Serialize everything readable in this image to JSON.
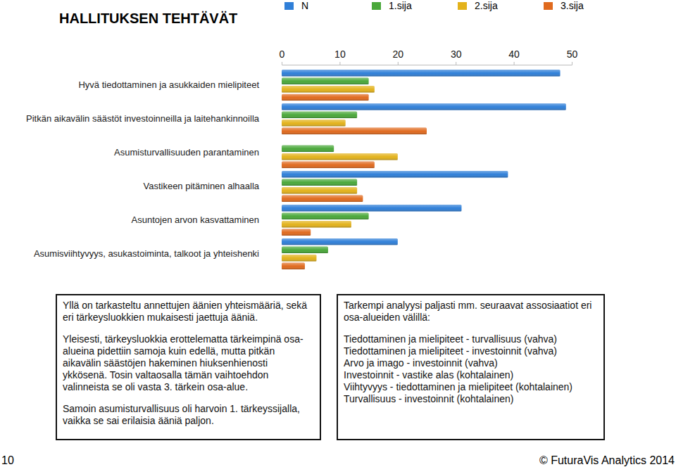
{
  "chart_data": {
    "type": "bar",
    "orientation": "horizontal",
    "title": "HALLITUKSEN TEHTÄVÄT",
    "categories": [
      "Hyvä tiedottaminen ja asukkaiden mielipiteet",
      "Pitkän aikavälin säästöt investoinneilla ja laitehankinnoilla",
      "Asumisturvallisuuden parantaminen",
      "Vastikeen pitäminen alhaalla",
      "Asuntojen arvon kasvattaminen",
      "Asumisviihtyvyys, asukastoiminta, talkoot ja yhteishenki"
    ],
    "series": [
      {
        "name": "N",
        "color": "#2f7fd8",
        "values": [
          48,
          49,
          null,
          39,
          31,
          20
        ]
      },
      {
        "name": "1.sija",
        "color": "#4aa83a",
        "values": [
          15,
          13,
          9,
          13,
          15,
          8
        ]
      },
      {
        "name": "2.sija",
        "color": "#e3b21b",
        "values": [
          16,
          11,
          20,
          13,
          12,
          6
        ]
      },
      {
        "name": "3.sija",
        "color": "#e06a1e",
        "values": [
          15,
          25,
          16,
          14,
          5,
          4
        ]
      }
    ],
    "xlim": [
      0,
      50
    ],
    "xticks": [
      0,
      10,
      20,
      30,
      40,
      50
    ],
    "legend": "top",
    "grid": false
  },
  "text_boxes": [
    {
      "paragraphs": [
        "Yllä on tarkasteltu annettujen äänien yhteismääriä, sekä eri tärkeysluokkien mukaisesti jaettuja ääniä.",
        "Yleisesti, tärkeysluokkia erottelematta tärkeimpinä osa-alueina pidettiin samoja kuin edellä, mutta pitkän aikavälin säästöjen hakeminen hiuksenhienosti ykkösenä. Tosin valtaosalla tämän vaihtoehdon valinneista se oli vasta 3. tärkein osa-alue.",
        "Samoin asumisturvallisuus oli harvoin 1. tärkeyssijalla, vaikka se sai erilaisia ääniä paljon."
      ]
    },
    {
      "intro": "Tarkempi analyysi paljasti mm. seuraavat assosiaatiot eri osa-alueiden välillä:",
      "lines": [
        "Tiedottaminen ja mielipiteet - turvallisuus (vahva)",
        "Tiedottaminen ja mielipiteet - investoinnit (vahva)",
        "Arvo ja imago - investoinnit (vahva)",
        "Investoinnit - vastike alas (kohtalainen)",
        "Viihtyvyys - tiedottaminen ja mielipiteet (kohtalainen)",
        "Turvallisuus - investoinnit (kohtalainen)"
      ]
    }
  ],
  "page": {
    "number": 10,
    "footer": "© FuturaVis Analytics 2014"
  }
}
